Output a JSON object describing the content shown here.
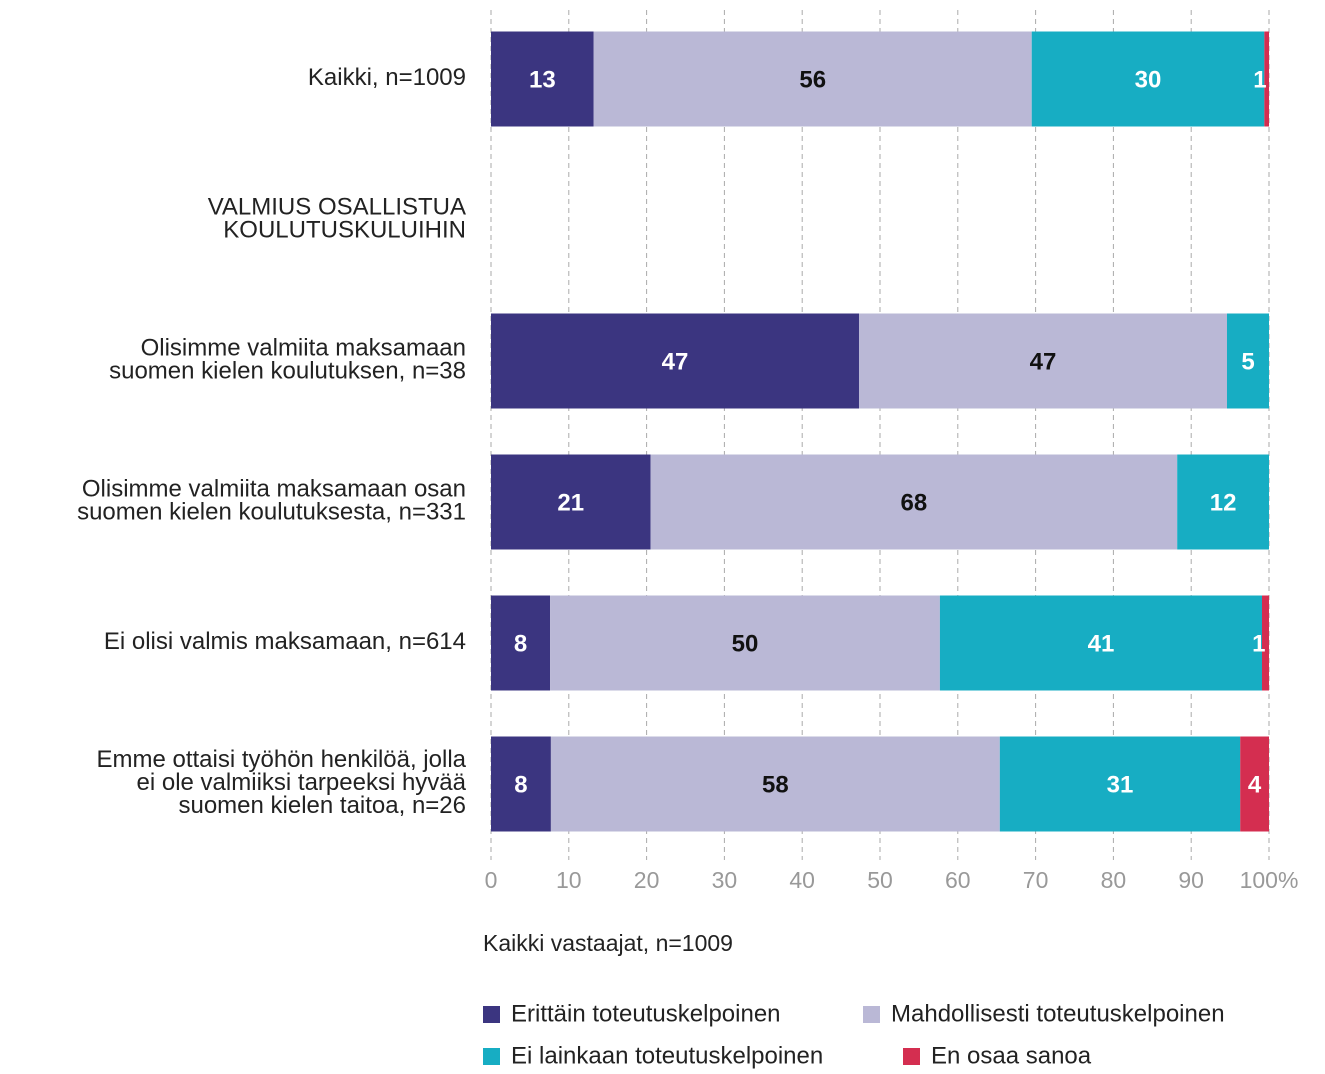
{
  "chart_data": {
    "type": "stacked-barh",
    "categories": [
      "Kaikki, n=1009",
      "VALMIUS OSALLISTUA\nKOULUTUSKULUIHIN",
      "Olisimme valmiita maksamaan\nsuomen kielen koulutuksen, n=38",
      "Olisimme valmiita maksamaan osan\nsuomen kielen koulutuksesta, n=331",
      "Ei olisi valmis maksamaan, n=614",
      "Emme ottaisi työhön henkilöä, jolla\nei ole valmiiksi tarpeeksi hyvää\nsuomen kielen taitoa, n=26"
    ],
    "series": [
      {
        "name": "Erittäin toteutuskelpoinen",
        "color": "#3b3580",
        "label_color": "#ffffff",
        "values": [
          13.2,
          null,
          47.3,
          20.5,
          7.6,
          7.7
        ],
        "value_labels": [
          "13",
          null,
          "47",
          "21",
          "8",
          "8"
        ]
      },
      {
        "name": "Mahdollisesti toteutuskelpoinen",
        "color": "#bab8d6",
        "label_color": "#111111",
        "values": [
          56.3,
          null,
          47.3,
          67.7,
          50.1,
          57.7
        ],
        "value_labels": [
          "56",
          null,
          "47",
          "68",
          "50",
          "58"
        ]
      },
      {
        "name": "Ei lainkaan toteutuskelpoinen",
        "color": "#17adc3",
        "label_color": "#ffffff",
        "values": [
          29.9,
          null,
          5.4,
          11.8,
          41.4,
          30.9
        ],
        "value_labels": [
          "30",
          null,
          "5",
          "12",
          "41",
          "31"
        ]
      },
      {
        "name": "En osaa sanoa",
        "color": "#d42e50",
        "label_color": "#ffffff",
        "values": [
          0.6,
          null,
          null,
          null,
          0.9,
          3.7
        ],
        "value_labels": [
          "1",
          null,
          null,
          null,
          "1",
          "4"
        ]
      }
    ],
    "xlim": [
      0,
      100
    ],
    "xticks": [
      0,
      10,
      20,
      30,
      40,
      50,
      60,
      70,
      80,
      90,
      {
        "value": 100,
        "label": "100%"
      }
    ],
    "xlabel": "Kaikki vastaajat, n=1009",
    "grid": true,
    "legend": "bottom"
  }
}
